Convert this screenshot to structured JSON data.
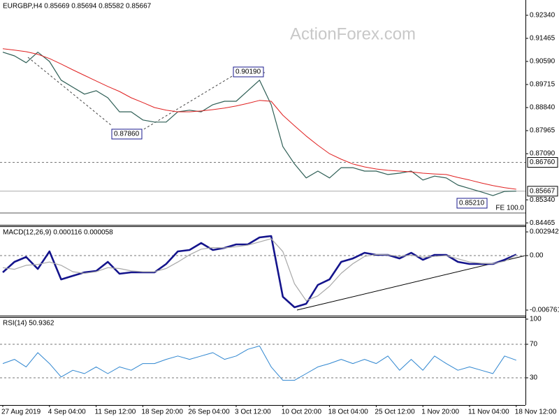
{
  "chart_data": [
    {
      "type": "line",
      "title": "EURGBP,H4  0.85669 0.85694 0.85582 0.85667",
      "watermark": "ActionForex.com",
      "ylim": [
        0.8439,
        0.9292
      ],
      "yticks": [
        {
          "value": 0.9234,
          "label": "0.92340"
        },
        0.91465,
        {
          "value": 0.9059,
          "label": "0.90590"
        },
        0.89715,
        {
          "value": 0.8884,
          "label": "0.88840"
        },
        0.87965,
        {
          "value": 0.8709,
          "label": "0.87090"
        },
        {
          "value": 0.8534,
          "label": "0.85340"
        },
        0.84465
      ],
      "series": [
        {
          "color": "#2e5e55",
          "values": [
            0.9094,
            0.908,
            0.9054,
            0.9094,
            0.9059,
            0.8988,
            0.8961,
            0.8935,
            0.8948,
            0.8921,
            0.8868,
            0.8868,
            0.8837,
            0.8829,
            0.8829,
            0.8868,
            0.8874,
            0.8868,
            0.8895,
            0.8908,
            0.8908,
            0.8948,
            0.8988,
            0.8895,
            0.8736,
            0.867,
            0.8617,
            0.8643,
            0.8617,
            0.8656,
            0.8656,
            0.8643,
            0.8643,
            0.863,
            0.8635,
            0.8643,
            0.8609,
            0.8624,
            0.8617,
            0.859,
            0.8577,
            0.8564,
            0.855,
            0.8566,
            0.8567
          ]
        },
        {
          "color": "#e02020",
          "values": [
            0.9107,
            0.9102,
            0.9096,
            0.9086,
            0.907,
            0.9049,
            0.9027,
            0.9006,
            0.8985,
            0.8964,
            0.8945,
            0.8921,
            0.8903,
            0.8884,
            0.8874,
            0.8868,
            0.8868,
            0.8871,
            0.8876,
            0.8882,
            0.889,
            0.89,
            0.8911,
            0.8908,
            0.8855,
            0.8815,
            0.8776,
            0.8741,
            0.8709,
            0.8688,
            0.867,
            0.8659,
            0.8651,
            0.8646,
            0.8643,
            0.864,
            0.8635,
            0.8632,
            0.863,
            0.8619,
            0.8609,
            0.8598,
            0.8588,
            0.858,
            0.8574
          ]
        }
      ],
      "hlines": [
        {
          "value": 0.8676,
          "label": "0.86760",
          "style": "dashed",
          "boxed": true
        },
        {
          "value": 0.85667,
          "label": "0.85667",
          "style": "solid",
          "boxed": true
        },
        {
          "value": 0.8484,
          "label": "FE 100.0",
          "style": "solid",
          "boxed": false
        }
      ],
      "annotations": [
        "0.90190",
        "0.87860",
        "0.85210"
      ]
    },
    {
      "type": "line",
      "title": "MACD(12,26,9) 0.000116 0.000058",
      "ylim": [
        -0.00745,
        0.00364
      ],
      "yticks": [
        0.002942,
        {
          "value": 0,
          "label": "0.00"
        },
        -0.006761
      ],
      "series": [
        {
          "color": "#14148c",
          "values": [
            -0.00208,
            -0.00078,
            -0.00017,
            -0.00165,
            0.00052,
            -0.00295,
            -0.00251,
            -0.00208,
            -0.00191,
            -0.00078,
            -0.00225,
            -0.00208,
            -0.00208,
            -0.00208,
            -0.00104,
            0.00052,
            0.00069,
            0.00156,
            0.00069,
            0.00095,
            0.00139,
            0.00139,
            0.00225,
            0.00243,
            -0.00511,
            -0.00641,
            -0.00598,
            -0.00364,
            -0.00295,
            -0.00078,
            -0.00035,
            0.00035,
            9e-05,
            9e-05,
            -0.00035,
            0.00035,
            -0.00052,
            9e-05,
            9e-05,
            -0.00078,
            -0.00104,
            -0.00104,
            -0.00104,
            -0.00052,
            0.00012
          ]
        },
        {
          "color": "#a8a8a8",
          "values": [
            -0.0015,
            -0.0017,
            -0.0012,
            -0.0011,
            -0.0008,
            -0.0012,
            -0.002,
            -0.0022,
            -0.002,
            -0.0015,
            -0.0016,
            -0.0019,
            -0.002,
            -0.002,
            -0.0016,
            -0.0008,
            0.0001,
            0.0008,
            0.001,
            0.00095,
            0.0011,
            0.0013,
            0.0017,
            0.0021,
            0.0005,
            -0.0035,
            -0.0056,
            -0.005,
            -0.0038,
            -0.0022,
            -0.001,
            -0.0001,
            0.00015,
            0.0001,
            -0.0001,
            5e-05,
            -0.0002,
            -0.0001,
            0,
            -0.0004,
            -0.0008,
            -0.00095,
            -0.001,
            -0.0007,
            6e-05
          ]
        }
      ],
      "hlines": [
        {
          "value": 0,
          "style": "dashed"
        }
      ]
    },
    {
      "type": "line",
      "title": "RSI(14) 50.9362",
      "ylim": [
        -2.5,
        102.5
      ],
      "yticks": [
        100,
        70,
        30
      ],
      "categories": [
        "27 Aug 2019",
        null,
        null,
        null,
        "4 Sep 04:00",
        null,
        null,
        null,
        "11 Sep 12:00",
        null,
        null,
        null,
        "18 Sep 20:00",
        null,
        null,
        null,
        "26 Sep 04:00",
        null,
        null,
        null,
        "3 Oct 12:00",
        null,
        null,
        null,
        "10 Oct 20:00",
        null,
        null,
        null,
        "18 Oct 04:00",
        null,
        null,
        null,
        "25 Oct 12:00",
        null,
        null,
        null,
        "1 Nov 20:00",
        null,
        null,
        null,
        "11 Nov 04:00",
        null,
        null,
        null,
        "18 Nov 12:00"
      ],
      "series": [
        {
          "color": "#2f86d0",
          "values": [
            47,
            52,
            43,
            60,
            47,
            31,
            39,
            35,
            43,
            35,
            43,
            39,
            47,
            47,
            52,
            56,
            52,
            56,
            60,
            52,
            56,
            64,
            68,
            43,
            27,
            27,
            35,
            43,
            47,
            52,
            47,
            52,
            47,
            56,
            39,
            52,
            39,
            56,
            47,
            39,
            43,
            39,
            35,
            56,
            51
          ]
        }
      ],
      "hlines": [
        {
          "value": 70,
          "style": "dashed"
        },
        {
          "value": 30,
          "style": "dashed"
        }
      ]
    }
  ]
}
